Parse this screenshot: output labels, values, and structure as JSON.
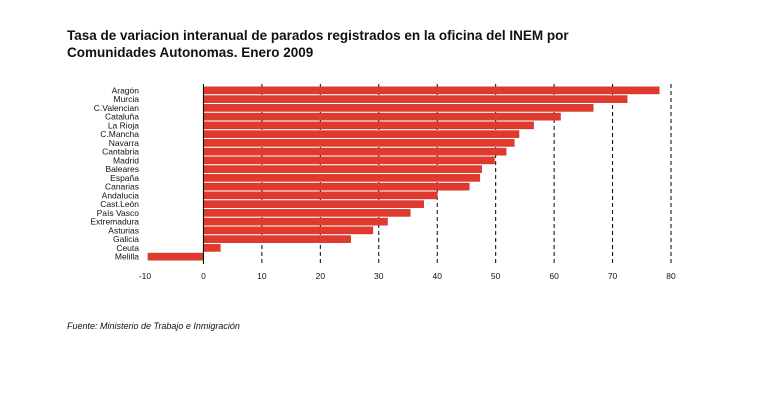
{
  "title": "Tasa de variacion interanual de parados registrados en la oficina del INEM por Comunidades Autonomas. Enero 2009",
  "source": "Fuente: Ministerio de Trabajo e Inmigración",
  "colors": {
    "bar": "#e03a2e",
    "bar_stroke": "#c22a20",
    "grid": "#000000",
    "baseline": "#000000"
  },
  "chart_data": {
    "type": "bar",
    "orientation": "horizontal",
    "title": "Tasa de variacion interanual de parados registrados en la oficina del INEM por Comunidades Autonomas. Enero 2009",
    "xlabel": "",
    "ylabel": "",
    "categories": [
      "Aragón",
      "Murcia",
      "C.Valencian",
      "Cataluña",
      "La Rioja",
      "C.Mancha",
      "Navarra",
      "Cantabria",
      "Madrid",
      "Baleares",
      "España",
      "Canarias",
      "Andalucia",
      "Cast.León",
      "País Vasco",
      "Extremadura",
      "Asturias",
      "Galicia",
      "Ceuta",
      "Melilla"
    ],
    "values": [
      78,
      72.5,
      66.7,
      61.1,
      56.5,
      54,
      53.2,
      51.8,
      49.8,
      47.6,
      47.3,
      45.5,
      40,
      37.7,
      35.4,
      31.5,
      29,
      25.2,
      2.9,
      -9.5
    ],
    "xlim": [
      -10,
      80
    ],
    "xticks": [
      -10,
      0,
      10,
      20,
      30,
      40,
      50,
      60,
      70,
      80
    ],
    "grid": "vertical dashed",
    "legend": "none"
  }
}
